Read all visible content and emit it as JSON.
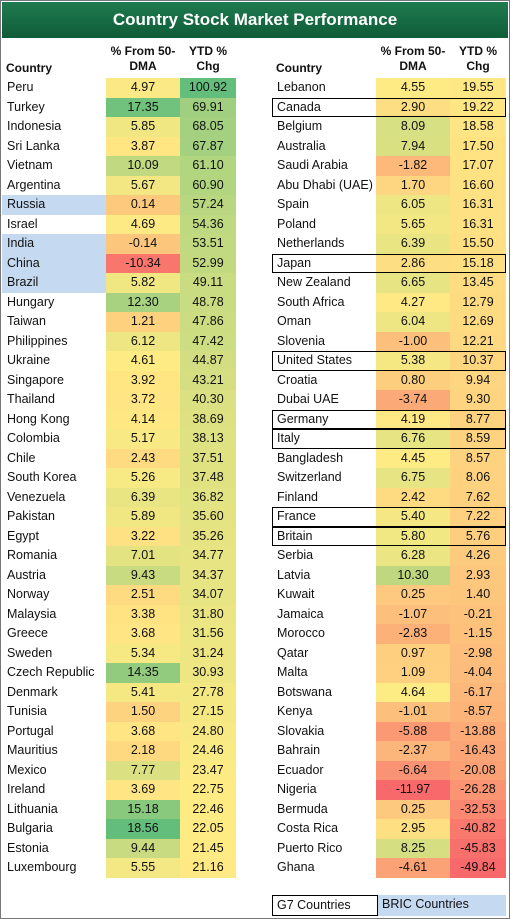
{
  "title": "Country Stock Market Performance",
  "headers": {
    "country": "Country",
    "dma_line1": "% From 50-",
    "dma_line2": "DMA",
    "ytd_line1": "YTD %",
    "ytd_line2": "Chg"
  },
  "legend": {
    "g7": "G7 Countries",
    "bric": "BRIC Countries"
  },
  "colors": {
    "title_bg": "#1a6e45",
    "bric_fill": "#c5d9f1",
    "good": "#63be7b",
    "mid": "#ffeb84",
    "bad": "#f8696b"
  },
  "chart_data": {
    "type": "table",
    "columns": [
      "Country",
      "% From 50-DMA",
      "YTD % Chg"
    ],
    "left_table": [
      {
        "country": "Peru",
        "dma": 4.97,
        "ytd": 100.92,
        "group": ""
      },
      {
        "country": "Turkey",
        "dma": 17.35,
        "ytd": 69.91,
        "group": ""
      },
      {
        "country": "Indonesia",
        "dma": 5.85,
        "ytd": 68.05,
        "group": ""
      },
      {
        "country": "Sri Lanka",
        "dma": 3.87,
        "ytd": 67.87,
        "group": ""
      },
      {
        "country": "Vietnam",
        "dma": 10.09,
        "ytd": 61.1,
        "group": ""
      },
      {
        "country": "Argentina",
        "dma": 5.67,
        "ytd": 60.9,
        "group": ""
      },
      {
        "country": "Russia",
        "dma": 0.14,
        "ytd": 57.24,
        "group": "BRIC"
      },
      {
        "country": "Israel",
        "dma": 4.69,
        "ytd": 54.36,
        "group": ""
      },
      {
        "country": "India",
        "dma": -0.14,
        "ytd": 53.51,
        "group": "BRIC"
      },
      {
        "country": "China",
        "dma": -10.34,
        "ytd": 52.99,
        "group": "BRIC"
      },
      {
        "country": "Brazil",
        "dma": 5.82,
        "ytd": 49.11,
        "group": "BRIC"
      },
      {
        "country": "Hungary",
        "dma": 12.3,
        "ytd": 48.78,
        "group": ""
      },
      {
        "country": "Taiwan",
        "dma": 1.21,
        "ytd": 47.86,
        "group": ""
      },
      {
        "country": "Philippines",
        "dma": 6.12,
        "ytd": 47.42,
        "group": ""
      },
      {
        "country": "Ukraine",
        "dma": 4.61,
        "ytd": 44.87,
        "group": ""
      },
      {
        "country": "Singapore",
        "dma": 3.92,
        "ytd": 43.21,
        "group": ""
      },
      {
        "country": "Thailand",
        "dma": 3.72,
        "ytd": 40.3,
        "group": ""
      },
      {
        "country": "Hong Kong",
        "dma": 4.14,
        "ytd": 38.69,
        "group": ""
      },
      {
        "country": "Colombia",
        "dma": 5.17,
        "ytd": 38.13,
        "group": ""
      },
      {
        "country": "Chile",
        "dma": 2.43,
        "ytd": 37.51,
        "group": ""
      },
      {
        "country": "South Korea",
        "dma": 5.26,
        "ytd": 37.48,
        "group": ""
      },
      {
        "country": "Venezuela",
        "dma": 6.39,
        "ytd": 36.82,
        "group": ""
      },
      {
        "country": "Pakistan",
        "dma": 5.89,
        "ytd": 35.6,
        "group": ""
      },
      {
        "country": "Egypt",
        "dma": 3.22,
        "ytd": 35.26,
        "group": ""
      },
      {
        "country": "Romania",
        "dma": 7.01,
        "ytd": 34.77,
        "group": ""
      },
      {
        "country": "Austria",
        "dma": 9.43,
        "ytd": 34.37,
        "group": ""
      },
      {
        "country": "Norway",
        "dma": 2.51,
        "ytd": 34.07,
        "group": ""
      },
      {
        "country": "Malaysia",
        "dma": 3.38,
        "ytd": 31.8,
        "group": ""
      },
      {
        "country": "Greece",
        "dma": 3.68,
        "ytd": 31.56,
        "group": ""
      },
      {
        "country": "Sweden",
        "dma": 5.34,
        "ytd": 31.24,
        "group": ""
      },
      {
        "country": "Czech Republic",
        "dma": 14.35,
        "ytd": 30.93,
        "group": ""
      },
      {
        "country": "Denmark",
        "dma": 5.41,
        "ytd": 27.78,
        "group": ""
      },
      {
        "country": "Tunisia",
        "dma": 1.5,
        "ytd": 27.15,
        "group": ""
      },
      {
        "country": "Portugal",
        "dma": 3.68,
        "ytd": 24.8,
        "group": ""
      },
      {
        "country": "Mauritius",
        "dma": 2.18,
        "ytd": 24.46,
        "group": ""
      },
      {
        "country": "Mexico",
        "dma": 7.77,
        "ytd": 23.47,
        "group": ""
      },
      {
        "country": "Ireland",
        "dma": 3.69,
        "ytd": 22.75,
        "group": ""
      },
      {
        "country": "Lithuania",
        "dma": 15.18,
        "ytd": 22.46,
        "group": ""
      },
      {
        "country": "Bulgaria",
        "dma": 18.56,
        "ytd": 22.05,
        "group": ""
      },
      {
        "country": "Estonia",
        "dma": 9.44,
        "ytd": 21.45,
        "group": ""
      },
      {
        "country": "Luxembourg",
        "dma": 5.55,
        "ytd": 21.16,
        "group": ""
      }
    ],
    "right_table": [
      {
        "country": "Lebanon",
        "dma": 4.55,
        "ytd": 19.55,
        "group": ""
      },
      {
        "country": "Canada",
        "dma": 2.9,
        "ytd": 19.22,
        "group": "G7"
      },
      {
        "country": "Belgium",
        "dma": 8.09,
        "ytd": 18.58,
        "group": ""
      },
      {
        "country": "Australia",
        "dma": 7.94,
        "ytd": 17.5,
        "group": ""
      },
      {
        "country": "Saudi Arabia",
        "dma": -1.82,
        "ytd": 17.07,
        "group": ""
      },
      {
        "country": "Abu Dhabi (UAE)",
        "dma": 1.7,
        "ytd": 16.6,
        "group": ""
      },
      {
        "country": "Spain",
        "dma": 6.05,
        "ytd": 16.31,
        "group": ""
      },
      {
        "country": "Poland",
        "dma": 5.65,
        "ytd": 16.31,
        "group": ""
      },
      {
        "country": "Netherlands",
        "dma": 6.39,
        "ytd": 15.5,
        "group": ""
      },
      {
        "country": "Japan",
        "dma": 2.86,
        "ytd": 15.18,
        "group": "G7"
      },
      {
        "country": "New Zealand",
        "dma": 6.65,
        "ytd": 13.45,
        "group": ""
      },
      {
        "country": "South Africa",
        "dma": 4.27,
        "ytd": 12.79,
        "group": ""
      },
      {
        "country": "Oman",
        "dma": 6.04,
        "ytd": 12.69,
        "group": ""
      },
      {
        "country": "Slovenia",
        "dma": -1.0,
        "ytd": 12.21,
        "group": ""
      },
      {
        "country": "United States",
        "dma": 5.38,
        "ytd": 10.37,
        "group": "G7"
      },
      {
        "country": "Croatia",
        "dma": 0.8,
        "ytd": 9.94,
        "group": ""
      },
      {
        "country": "Dubai UAE",
        "dma": -3.74,
        "ytd": 9.3,
        "group": ""
      },
      {
        "country": "Germany",
        "dma": 4.19,
        "ytd": 8.77,
        "group": "G7"
      },
      {
        "country": "Italy",
        "dma": 6.76,
        "ytd": 8.59,
        "group": "G7"
      },
      {
        "country": "Bangladesh",
        "dma": 4.45,
        "ytd": 8.57,
        "group": ""
      },
      {
        "country": "Switzerland",
        "dma": 6.75,
        "ytd": 8.06,
        "group": ""
      },
      {
        "country": "Finland",
        "dma": 2.42,
        "ytd": 7.62,
        "group": ""
      },
      {
        "country": "France",
        "dma": 5.4,
        "ytd": 7.22,
        "group": "G7"
      },
      {
        "country": "Britain",
        "dma": 5.8,
        "ytd": 5.76,
        "group": "G7"
      },
      {
        "country": "Serbia",
        "dma": 6.28,
        "ytd": 4.26,
        "group": ""
      },
      {
        "country": "Latvia",
        "dma": 10.3,
        "ytd": 2.93,
        "group": ""
      },
      {
        "country": "Kuwait",
        "dma": 0.25,
        "ytd": 1.4,
        "group": ""
      },
      {
        "country": "Jamaica",
        "dma": -1.07,
        "ytd": -0.21,
        "group": ""
      },
      {
        "country": "Morocco",
        "dma": -2.83,
        "ytd": -1.15,
        "group": ""
      },
      {
        "country": "Qatar",
        "dma": 0.97,
        "ytd": -2.98,
        "group": ""
      },
      {
        "country": "Malta",
        "dma": 1.09,
        "ytd": -4.04,
        "group": ""
      },
      {
        "country": "Botswana",
        "dma": 4.64,
        "ytd": -6.17,
        "group": ""
      },
      {
        "country": "Kenya",
        "dma": -1.01,
        "ytd": -8.57,
        "group": ""
      },
      {
        "country": "Slovakia",
        "dma": -5.88,
        "ytd": -13.88,
        "group": ""
      },
      {
        "country": "Bahrain",
        "dma": -2.37,
        "ytd": -16.43,
        "group": ""
      },
      {
        "country": "Ecuador",
        "dma": -6.64,
        "ytd": -20.08,
        "group": ""
      },
      {
        "country": "Nigeria",
        "dma": -11.97,
        "ytd": -26.28,
        "group": ""
      },
      {
        "country": "Bermuda",
        "dma": 0.25,
        "ytd": -32.53,
        "group": ""
      },
      {
        "country": "Costa Rica",
        "dma": 2.95,
        "ytd": -40.82,
        "group": ""
      },
      {
        "country": "Puerto Rico",
        "dma": 8.25,
        "ytd": -45.83,
        "group": ""
      },
      {
        "country": "Ghana",
        "dma": -4.61,
        "ytd": -49.84,
        "group": ""
      }
    ]
  }
}
